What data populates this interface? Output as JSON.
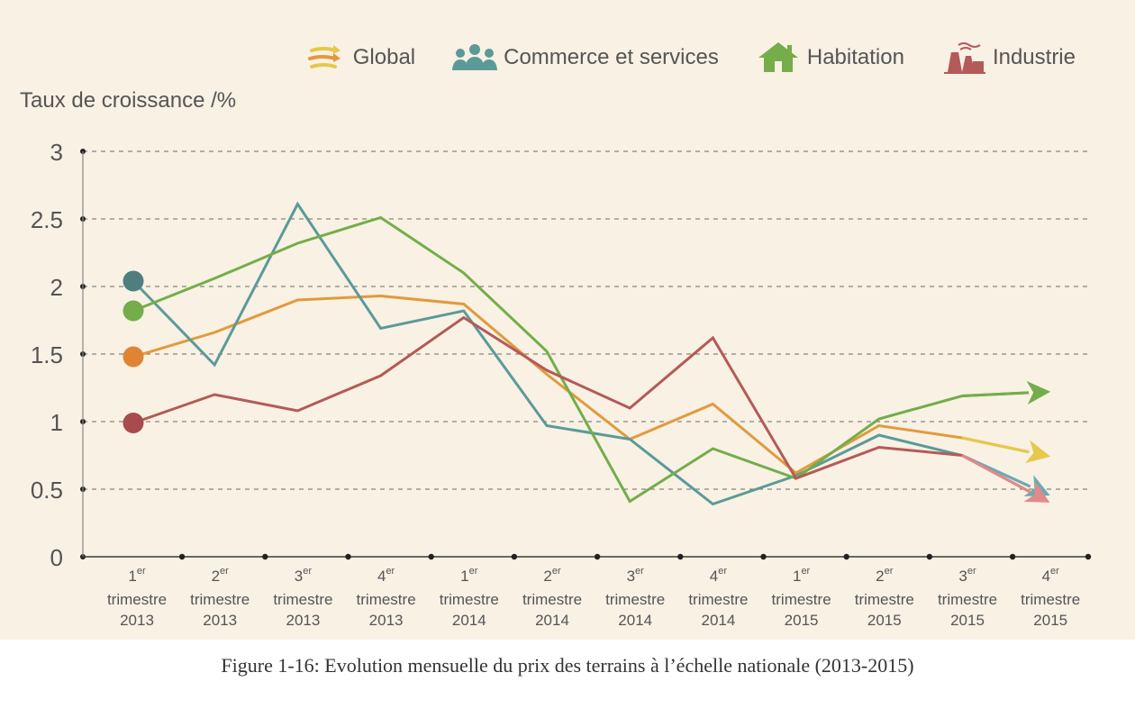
{
  "caption": "Figure 1-16: Evolution mensuelle du prix des terrains à l’échelle nationale (2013-2015)",
  "chart_data": {
    "type": "line",
    "ylabel": "Taux de croissance /%",
    "ylim": [
      0,
      3
    ],
    "yticks": [
      "0",
      "0.5",
      "1",
      "1.5",
      "2",
      "2.5",
      "3"
    ],
    "grid": true,
    "legend_position": "top-right",
    "categories": [
      {
        "ordinal": "1",
        "sup": "er",
        "line2": "trimestre",
        "year": "2013"
      },
      {
        "ordinal": "2",
        "sup": "er",
        "line2": "trimestre",
        "year": "2013"
      },
      {
        "ordinal": "3",
        "sup": "er",
        "line2": "trimestre",
        "year": "2013"
      },
      {
        "ordinal": "4",
        "sup": "er",
        "line2": "trimestre",
        "year": "2013"
      },
      {
        "ordinal": "1",
        "sup": "er",
        "line2": "trimestre",
        "year": "2014"
      },
      {
        "ordinal": "2",
        "sup": "er",
        "line2": "trimestre",
        "year": "2014"
      },
      {
        "ordinal": "3",
        "sup": "er",
        "line2": "trimestre",
        "year": "2014"
      },
      {
        "ordinal": "4",
        "sup": "er",
        "line2": "trimestre",
        "year": "2014"
      },
      {
        "ordinal": "1",
        "sup": "er",
        "line2": "trimestre",
        "year": "2015"
      },
      {
        "ordinal": "2",
        "sup": "er",
        "line2": "trimestre",
        "year": "2015"
      },
      {
        "ordinal": "3",
        "sup": "er",
        "line2": "trimestre",
        "year": "2015"
      },
      {
        "ordinal": "4",
        "sup": "er",
        "line2": "trimestre",
        "year": "2015"
      }
    ],
    "series": [
      {
        "name": "Global",
        "color": "#e19a3c",
        "dot_color": "#e08434",
        "arrow_color": "#e6c84a",
        "icon": "global-icon",
        "values": [
          1.48,
          1.66,
          1.9,
          1.93,
          1.87,
          1.35,
          0.87,
          1.13,
          0.62,
          0.97,
          0.88,
          0.75
        ]
      },
      {
        "name": "Commerce et services",
        "color": "#5c9a98",
        "dot_color": "#4f7e80",
        "arrow_color": "#6aacb4",
        "icon": "people-icon",
        "values": [
          2.04,
          1.42,
          2.61,
          1.69,
          1.82,
          0.97,
          0.87,
          0.39,
          0.6,
          0.9,
          0.75,
          0.47
        ]
      },
      {
        "name": "Habitation",
        "color": "#74ad4a",
        "dot_color": "#74ad4a",
        "arrow_color": "#74ad4a",
        "icon": "house-icon",
        "values": [
          1.82,
          2.06,
          2.32,
          2.51,
          2.1,
          1.52,
          0.41,
          0.8,
          0.58,
          1.02,
          1.19,
          1.22
        ]
      },
      {
        "name": "Industrie",
        "color": "#b45a58",
        "dot_color": "#a84b4c",
        "arrow_color": "#e28a8a",
        "icon": "factory-icon",
        "values": [
          0.99,
          1.2,
          1.08,
          1.34,
          1.77,
          1.38,
          1.1,
          1.62,
          0.58,
          0.81,
          0.75,
          0.42
        ]
      }
    ]
  }
}
